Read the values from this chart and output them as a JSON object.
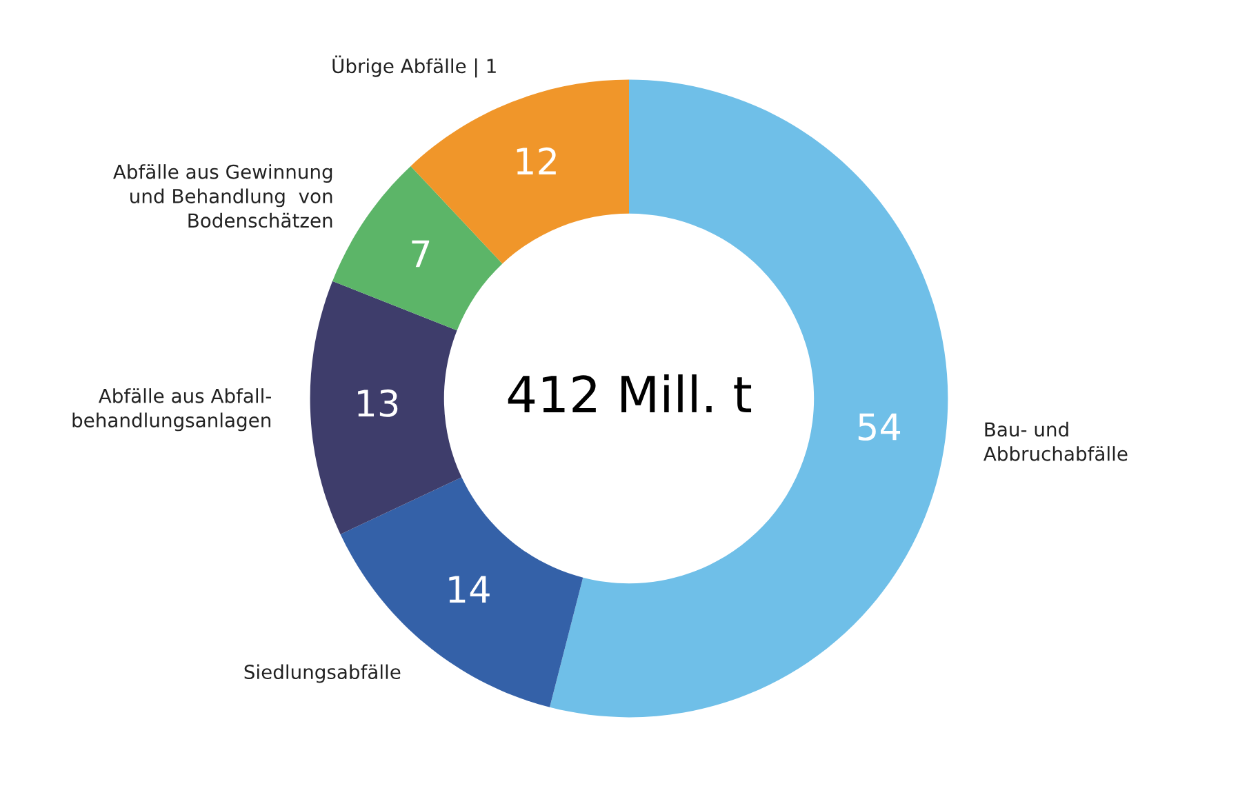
{
  "chart_data": {
    "type": "donut",
    "categories": [
      "Bau- und\nAbbruchabfälle",
      "Siedlungsabfälle",
      "Abfälle aus Abfall-\nbehandlungsanlagen",
      "Abfälle aus Gewinnung\nund Behandlung  von\nBodenschätzen",
      "Übrige Abfälle | 1"
    ],
    "values": [
      54,
      14,
      13,
      7,
      12
    ],
    "colors": [
      "#6fbfe8",
      "#3461a8",
      "#3e3d6b",
      "#5cb568",
      "#f0962a"
    ],
    "data_labels": true,
    "annotations": [
      "412 Mill. t"
    ],
    "legend": false
  }
}
